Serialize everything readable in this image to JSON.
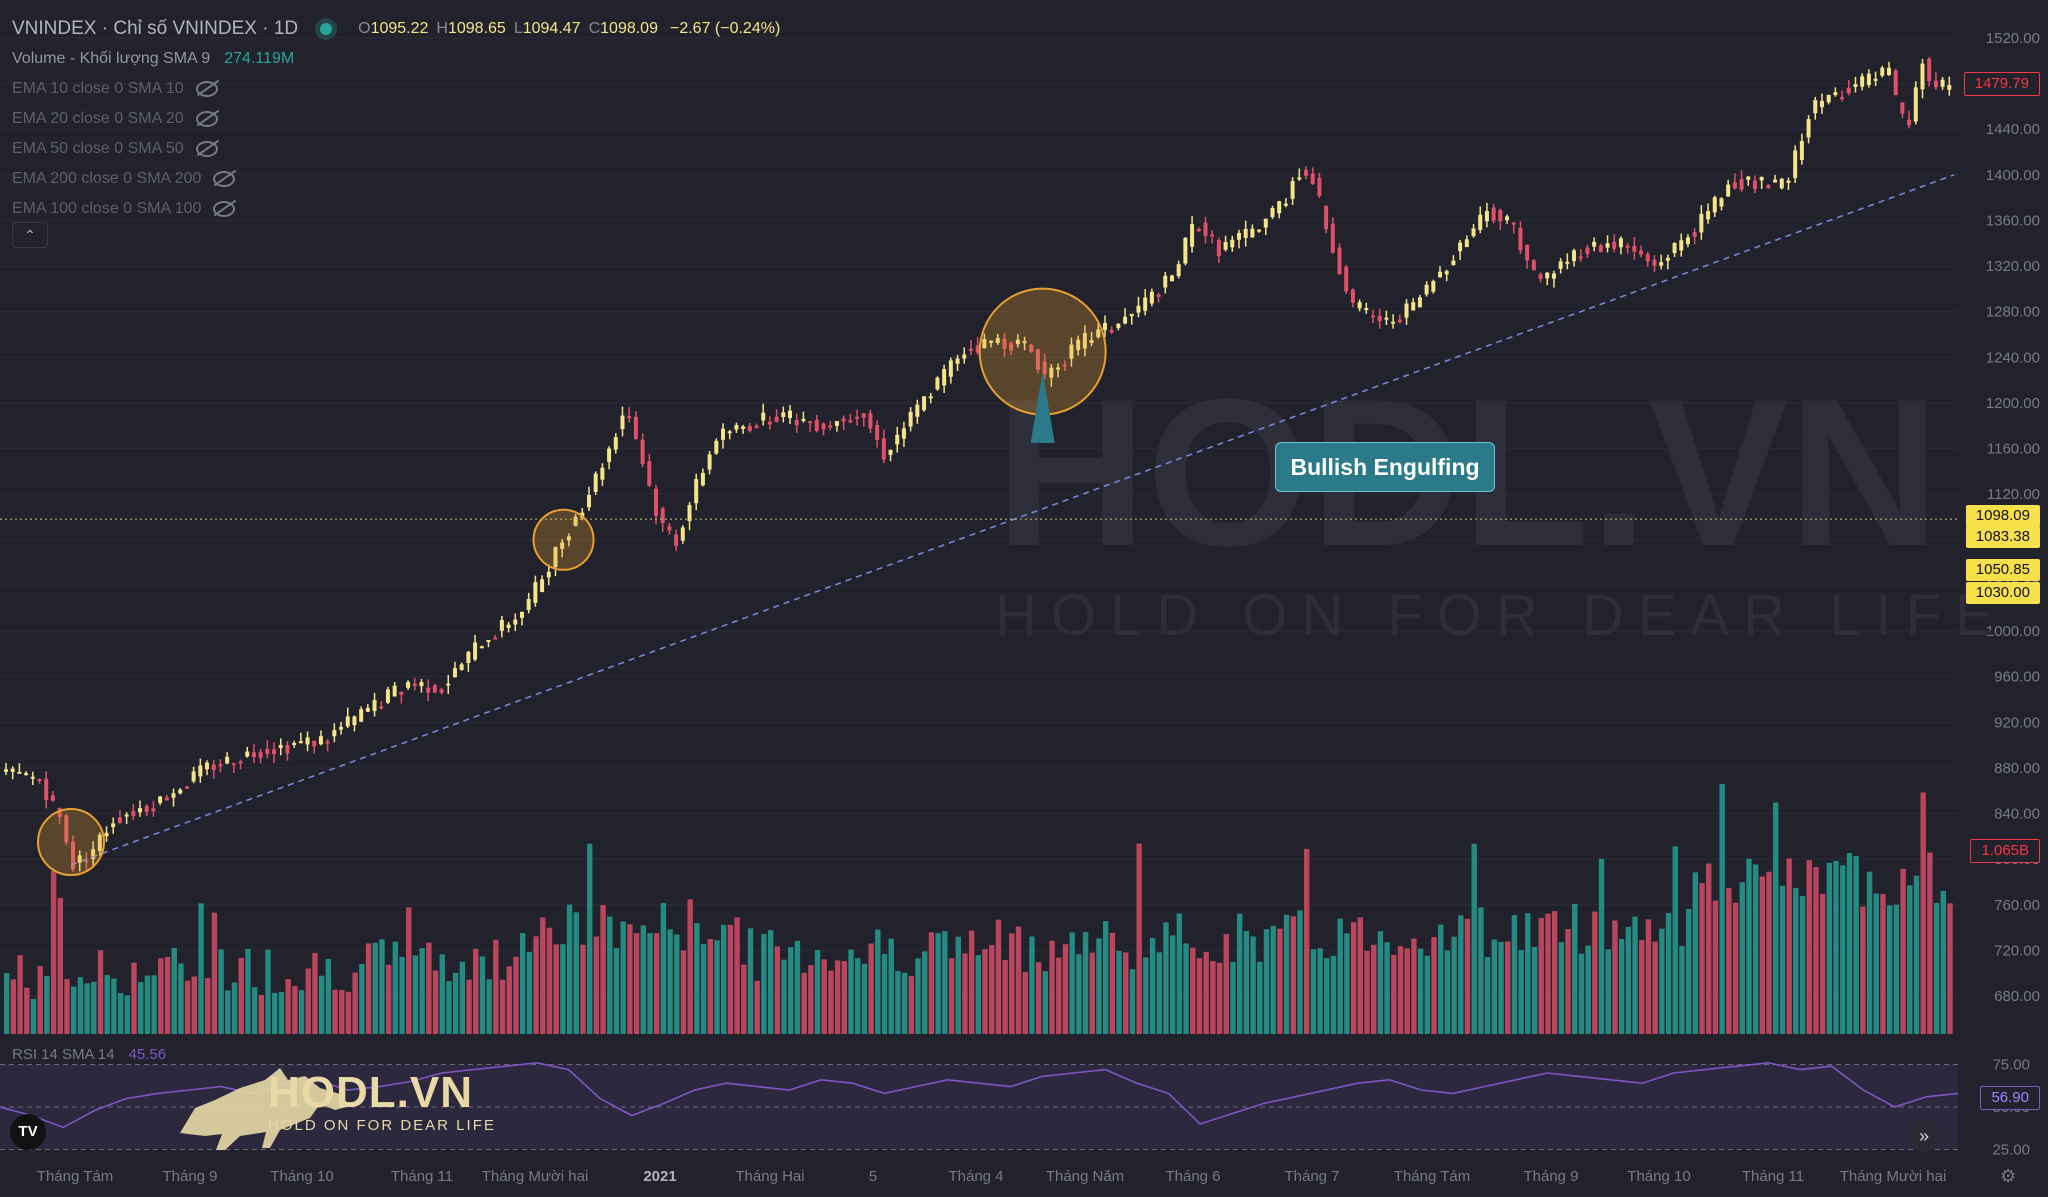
{
  "legend": {
    "title": "VNINDEX · Chỉ số VNINDEX · 1D",
    "open": "1095.22",
    "high": "1098.65",
    "low": "1094.47",
    "close": "1098.09",
    "change": "−2.67 (−0.24%)",
    "volume_label": "Volume - Khối lượng SMA 9",
    "volume_value": "274.119M",
    "emas": [
      "EMA 10 close 0 SMA 10",
      "EMA 20 close 0 SMA 20",
      "EMA 50 close 0 SMA 50",
      "EMA 200 close 0 SMA 200",
      "EMA 100 close 0 SMA 100"
    ]
  },
  "price_tags": {
    "last": "1479.79",
    "crosshair": "1098.09",
    "level1": "1083.38",
    "level2": "1050.85",
    "level3": "1030.00",
    "volume": "1.065B",
    "rsi": "56.90",
    "rsi_hidden": "50.00"
  },
  "annotation": "Bullish Engulfing",
  "watermark": {
    "brand": "HODL.VN",
    "tagline": "HOLD ON FOR DEAR LIFE"
  },
  "logo": {
    "brand": "HODL.VN",
    "tagline": "HOLD ON FOR DEAR LIFE"
  },
  "rsi": {
    "label": "RSI 14 SMA 14",
    "value": "45.56",
    "levels": [
      "75.00",
      "25.00"
    ]
  },
  "colors": {
    "up": "#f5e58a",
    "down": "#e0506a",
    "vol_up": "#26a69a",
    "vol_down": "#e0506a",
    "rsi": "#7e57c2",
    "trend": "#7a8ee0",
    "circle": "#e8a030"
  },
  "chart_data": {
    "type": "candlestick",
    "yaxis_ticks": [
      "1520.00",
      "1480.00",
      "1440.00",
      "1400.00",
      "1360.00",
      "1320.00",
      "1280.00",
      "1240.00",
      "1200.00",
      "1160.00",
      "1120.00",
      "1080.00",
      "1040.00",
      "1000.00",
      "960.00",
      "920.00",
      "880.00",
      "840.00",
      "800.00",
      "760.00",
      "720.00",
      "680.00"
    ],
    "xaxis_ticks": [
      "Tháng Tám",
      "Tháng 9",
      "Tháng 10",
      "Tháng 11",
      "Tháng Mười hai",
      "2021",
      "Tháng Hai",
      "5",
      "Tháng 4",
      "Tháng Năm",
      "Tháng 6",
      "Tháng 7",
      "Tháng Tám",
      "Tháng 9",
      "Tháng 10",
      "Tháng 11",
      "Tháng Mười hai"
    ],
    "ylim": [
      680,
      1525
    ],
    "close_path": [
      [
        0,
        875
      ],
      [
        10,
        870
      ],
      [
        17,
        830
      ],
      [
        20,
        795
      ],
      [
        25,
        805
      ],
      [
        32,
        835
      ],
      [
        45,
        850
      ],
      [
        60,
        880
      ],
      [
        75,
        895
      ],
      [
        95,
        905
      ],
      [
        110,
        935
      ],
      [
        120,
        955
      ],
      [
        130,
        950
      ],
      [
        140,
        985
      ],
      [
        155,
        1020
      ],
      [
        165,
        1075
      ],
      [
        172,
        1110
      ],
      [
        180,
        1160
      ],
      [
        185,
        1198
      ],
      [
        188,
        1170
      ],
      [
        195,
        1095
      ],
      [
        200,
        1080
      ],
      [
        205,
        1120
      ],
      [
        212,
        1170
      ],
      [
        230,
        1190
      ],
      [
        245,
        1180
      ],
      [
        255,
        1195
      ],
      [
        262,
        1155
      ],
      [
        272,
        1195
      ],
      [
        285,
        1245
      ],
      [
        295,
        1255
      ],
      [
        305,
        1250
      ],
      [
        310,
        1225
      ],
      [
        322,
        1255
      ],
      [
        335,
        1275
      ],
      [
        348,
        1310
      ],
      [
        355,
        1360
      ],
      [
        362,
        1335
      ],
      [
        372,
        1350
      ],
      [
        382,
        1380
      ],
      [
        385,
        1405
      ],
      [
        390,
        1395
      ],
      [
        395,
        1345
      ],
      [
        402,
        1285
      ],
      [
        412,
        1270
      ],
      [
        420,
        1285
      ],
      [
        432,
        1330
      ],
      [
        442,
        1370
      ],
      [
        450,
        1355
      ],
      [
        457,
        1305
      ],
      [
        470,
        1335
      ],
      [
        482,
        1340
      ],
      [
        492,
        1320
      ],
      [
        505,
        1355
      ],
      [
        515,
        1395
      ],
      [
        528,
        1390
      ],
      [
        532,
        1395
      ],
      [
        538,
        1455
      ],
      [
        548,
        1475
      ],
      [
        558,
        1485
      ],
      [
        562,
        1490
      ],
      [
        565,
        1450
      ],
      [
        568,
        1445
      ],
      [
        572,
        1500
      ],
      [
        575,
        1475
      ],
      [
        582,
        1480
      ]
    ],
    "trendline": [
      [
        20,
        795
      ],
      [
        582,
        1400
      ]
    ],
    "rsi_values": [
      50,
      45,
      38,
      48,
      55,
      58,
      60,
      62,
      58,
      64,
      66,
      60,
      62,
      65,
      70,
      72,
      74,
      76,
      72,
      55,
      45,
      52,
      60,
      64,
      62,
      60,
      66,
      64,
      58,
      62,
      66,
      64,
      62,
      68,
      70,
      72,
      64,
      58,
      40,
      46,
      52,
      56,
      60,
      64,
      66,
      60,
      58,
      62,
      66,
      70,
      68,
      66,
      64,
      70,
      72,
      74,
      76,
      72,
      74,
      60,
      50,
      56,
      58
    ]
  }
}
